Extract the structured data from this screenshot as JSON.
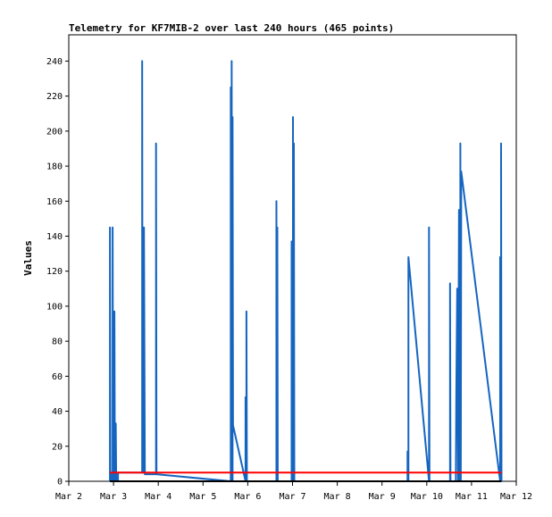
{
  "chart_data": {
    "type": "line",
    "title": "Telemetry for KF7MIB-2 over last 240 hours (465 points)",
    "ylabel": "Values",
    "xlabel": "",
    "ylim": [
      0,
      255
    ],
    "xlim": [
      2,
      12
    ],
    "x_ticks": [
      {
        "value": 2,
        "label": "Mar 2"
      },
      {
        "value": 3,
        "label": "Mar 3"
      },
      {
        "value": 4,
        "label": "Mar 4"
      },
      {
        "value": 5,
        "label": "Mar 5"
      },
      {
        "value": 6,
        "label": "Mar 6"
      },
      {
        "value": 7,
        "label": "Mar 7"
      },
      {
        "value": 8,
        "label": "Mar 8"
      },
      {
        "value": 9,
        "label": "Mar 9"
      },
      {
        "value": 10,
        "label": "Mar 10"
      },
      {
        "value": 11,
        "label": "Mar 11"
      },
      {
        "value": 12,
        "label": "Mar 12"
      }
    ],
    "y_ticks": [
      0,
      20,
      40,
      60,
      80,
      100,
      120,
      140,
      160,
      180,
      200,
      220,
      240
    ],
    "grid": false,
    "series": [
      {
        "color": "#1565c0",
        "x": [
          2.92,
          2.92,
          2.93,
          2.95,
          2.98,
          2.98,
          2.99,
          3.02,
          3.02,
          3.03,
          3.05,
          3.05,
          3.06,
          3.1,
          3.1,
          3.11,
          3.64,
          3.64,
          3.65,
          3.68,
          3.68,
          3.7,
          3.95,
          3.95,
          3.96,
          5.62,
          5.62,
          5.63,
          5.64,
          5.64,
          5.65,
          5.66,
          5.66,
          5.67,
          5.95,
          5.95,
          5.96,
          5.97,
          5.97,
          5.98,
          6.64,
          6.64,
          6.65,
          6.66,
          6.66,
          6.67,
          6.98,
          6.98,
          6.99,
          7.01,
          7.01,
          7.02,
          7.03,
          7.03,
          7.04,
          9.57,
          9.57,
          9.58,
          9.59,
          9.59,
          10.05,
          10.05,
          10.06,
          10.52,
          10.52,
          10.53,
          10.65,
          10.66,
          10.68,
          10.7,
          10.72,
          10.73,
          10.75,
          10.75,
          10.76,
          10.77,
          11.64,
          11.64,
          11.65,
          11.66,
          11.66,
          11.67
        ],
        "y": [
          0,
          145,
          0,
          4,
          0,
          145,
          0,
          0,
          97,
          0,
          0,
          33,
          0,
          0,
          5,
          5,
          5,
          240,
          5,
          5,
          145,
          4,
          4,
          193,
          4,
          0,
          225,
          0,
          0,
          240,
          0,
          0,
          208,
          32,
          0,
          48,
          0,
          0,
          97,
          0,
          0,
          160,
          0,
          0,
          145,
          0,
          0,
          137,
          0,
          0,
          208,
          0,
          0,
          193,
          0,
          0,
          17,
          0,
          0,
          128,
          0,
          145,
          0,
          0,
          113,
          0,
          0,
          50,
          110,
          0,
          155,
          0,
          0,
          193,
          0,
          177,
          0,
          128,
          0,
          0,
          193,
          0
        ]
      },
      {
        "color": "#ff0000",
        "x": [
          2.92,
          11.67
        ],
        "y": [
          5,
          5
        ]
      },
      {
        "color": "#000000",
        "x": [
          2.92,
          11.67
        ],
        "y": [
          0,
          0
        ]
      }
    ]
  }
}
